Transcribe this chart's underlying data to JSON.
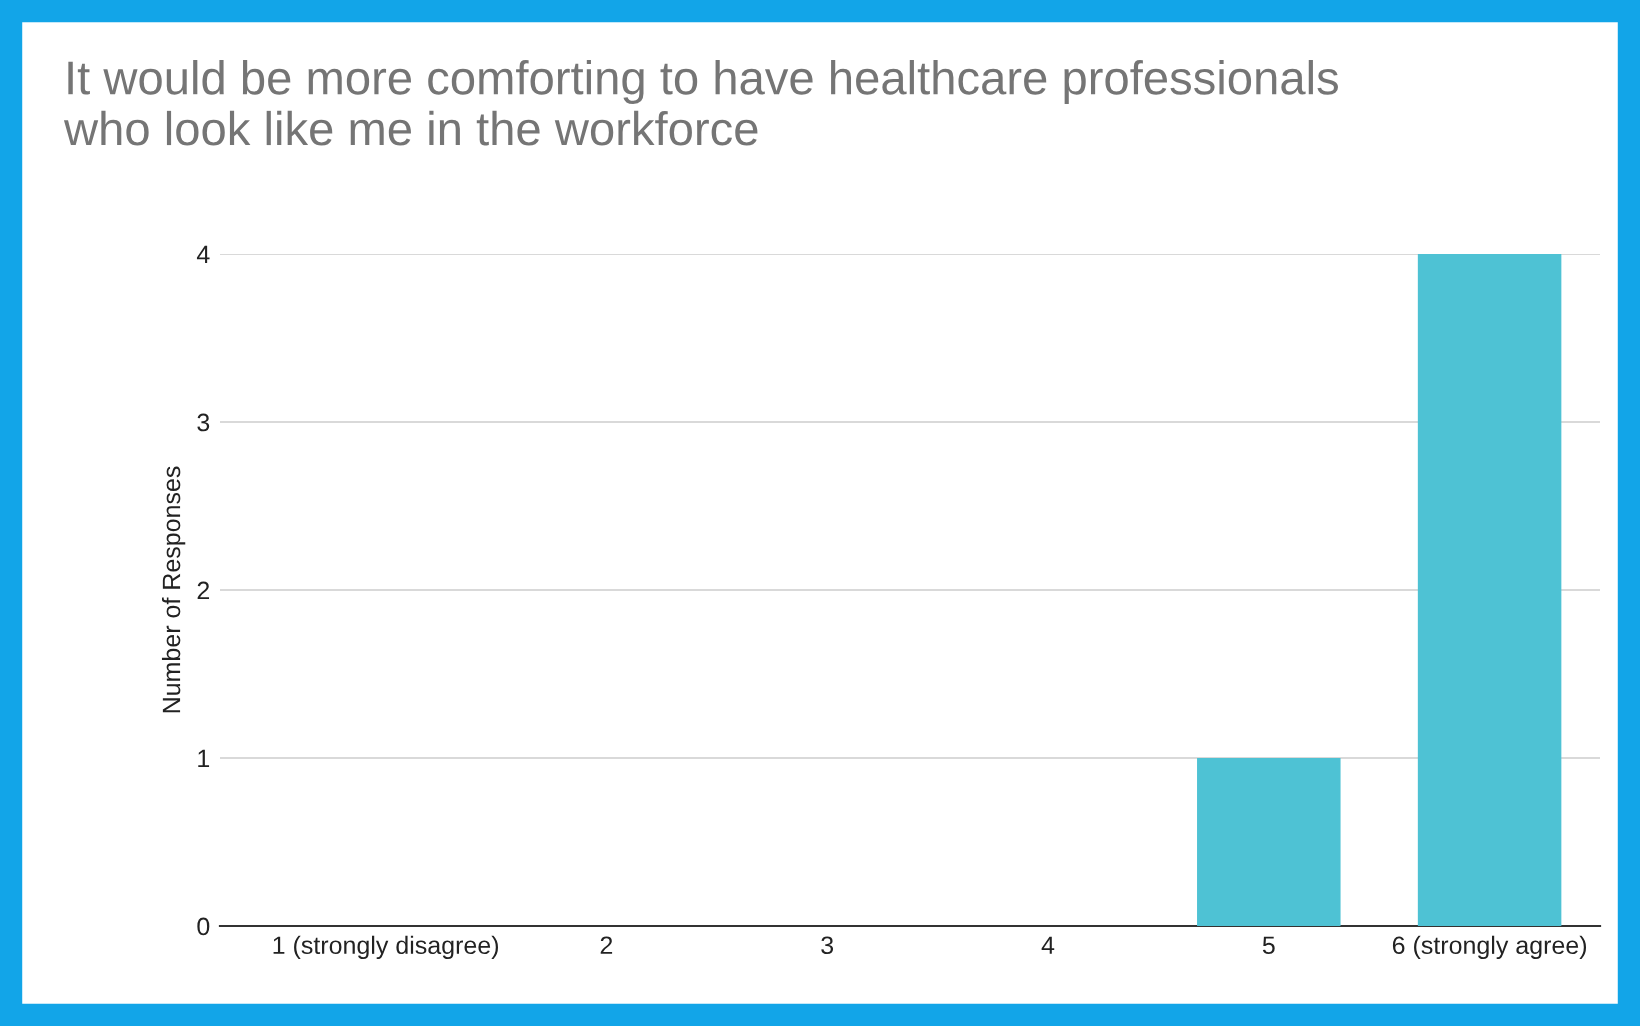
{
  "chart_data": {
    "type": "bar",
    "title": "It would be more comforting to have healthcare professionals\nwho look like me in the workforce",
    "ylabel": "Number of Responses",
    "categories": [
      "1 (strongly disagree)",
      "2",
      "3",
      "4",
      "5",
      "6 (strongly agree)"
    ],
    "values": [
      0,
      0,
      0,
      0,
      1,
      4
    ],
    "color": "#4ec2d4",
    "ylim": [
      0,
      4
    ],
    "yticks": [
      0,
      1,
      2,
      3,
      4
    ],
    "grid": "y",
    "legend": false
  }
}
